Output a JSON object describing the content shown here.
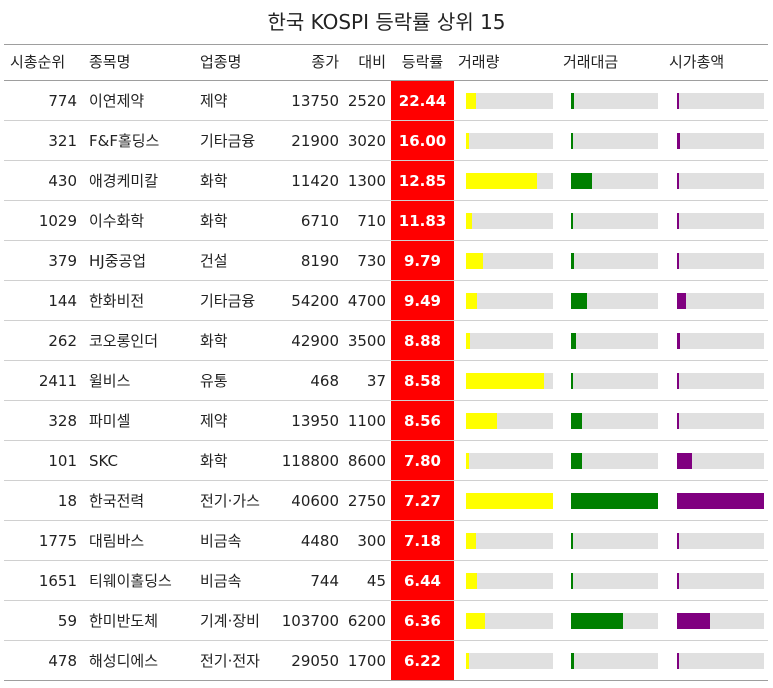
{
  "title": "한국 KOSPI 등락률 상위 15",
  "columns": {
    "rank": "시총순위",
    "name": "종목명",
    "sector": "업종명",
    "close": "종가",
    "change": "대비",
    "rate": "등락률",
    "volume": "거래량",
    "value": "거래대금",
    "mcap": "시가총액"
  },
  "colors": {
    "rate_bg": "#ff0000",
    "volume_bar": "#ffff00",
    "value_bar": "#008000",
    "mcap_bar": "#800080",
    "track": "#e0e0e0"
  },
  "chart_data": {
    "type": "table",
    "rows": [
      {
        "rank": "774",
        "name": "이연제약",
        "sector": "제약",
        "close": "13750",
        "change": "2520",
        "rate": "22.44",
        "volume_frac": 0.12,
        "value_frac": 0.04,
        "mcap_frac": 0.02
      },
      {
        "rank": "321",
        "name": "F&F홀딩스",
        "sector": "기타금융",
        "close": "21900",
        "change": "3020",
        "rate": "16.00",
        "volume_frac": 0.04,
        "value_frac": 0.02,
        "mcap_frac": 0.04
      },
      {
        "rank": "430",
        "name": "애경케미칼",
        "sector": "화학",
        "close": "11420",
        "change": "1300",
        "rate": "12.85",
        "volume_frac": 0.82,
        "value_frac": 0.24,
        "mcap_frac": 0.02
      },
      {
        "rank": "1029",
        "name": "이수화학",
        "sector": "화학",
        "close": "6710",
        "change": "710",
        "rate": "11.83",
        "volume_frac": 0.07,
        "value_frac": 0.02,
        "mcap_frac": 0.02
      },
      {
        "rank": "379",
        "name": "HJ중공업",
        "sector": "건설",
        "close": "8190",
        "change": "730",
        "rate": "9.79",
        "volume_frac": 0.2,
        "value_frac": 0.04,
        "mcap_frac": 0.02
      },
      {
        "rank": "144",
        "name": "한화비전",
        "sector": "기타금융",
        "close": "54200",
        "change": "4700",
        "rate": "9.49",
        "volume_frac": 0.13,
        "value_frac": 0.18,
        "mcap_frac": 0.1
      },
      {
        "rank": "262",
        "name": "코오롱인더",
        "sector": "화학",
        "close": "42900",
        "change": "3500",
        "rate": "8.88",
        "volume_frac": 0.05,
        "value_frac": 0.06,
        "mcap_frac": 0.04
      },
      {
        "rank": "2411",
        "name": "윌비스",
        "sector": "유통",
        "close": "468",
        "change": "37",
        "rate": "8.58",
        "volume_frac": 0.9,
        "value_frac": 0.015,
        "mcap_frac": 0.01
      },
      {
        "rank": "328",
        "name": "파미셀",
        "sector": "제약",
        "close": "13950",
        "change": "1100",
        "rate": "8.56",
        "volume_frac": 0.36,
        "value_frac": 0.13,
        "mcap_frac": 0.02
      },
      {
        "rank": "101",
        "name": "SKC",
        "sector": "화학",
        "close": "118800",
        "change": "8600",
        "rate": "7.80",
        "volume_frac": 0.04,
        "value_frac": 0.13,
        "mcap_frac": 0.17
      },
      {
        "rank": "18",
        "name": "한국전력",
        "sector": "전기·가스",
        "close": "40600",
        "change": "2750",
        "rate": "7.27",
        "volume_frac": 1.0,
        "value_frac": 1.0,
        "mcap_frac": 1.0
      },
      {
        "rank": "1775",
        "name": "대림바스",
        "sector": "비금속",
        "close": "4480",
        "change": "300",
        "rate": "7.18",
        "volume_frac": 0.11,
        "value_frac": 0.02,
        "mcap_frac": 0.01
      },
      {
        "rank": "1651",
        "name": "티웨이홀딩스",
        "sector": "비금속",
        "close": "744",
        "change": "45",
        "rate": "6.44",
        "volume_frac": 0.13,
        "value_frac": 0.015,
        "mcap_frac": 0.01
      },
      {
        "rank": "59",
        "name": "한미반도체",
        "sector": "기계·장비",
        "close": "103700",
        "change": "6200",
        "rate": "6.36",
        "volume_frac": 0.22,
        "value_frac": 0.6,
        "mcap_frac": 0.38
      },
      {
        "rank": "478",
        "name": "해성디에스",
        "sector": "전기·전자",
        "close": "29050",
        "change": "1700",
        "rate": "6.22",
        "volume_frac": 0.03,
        "value_frac": 0.04,
        "mcap_frac": 0.02
      }
    ]
  }
}
